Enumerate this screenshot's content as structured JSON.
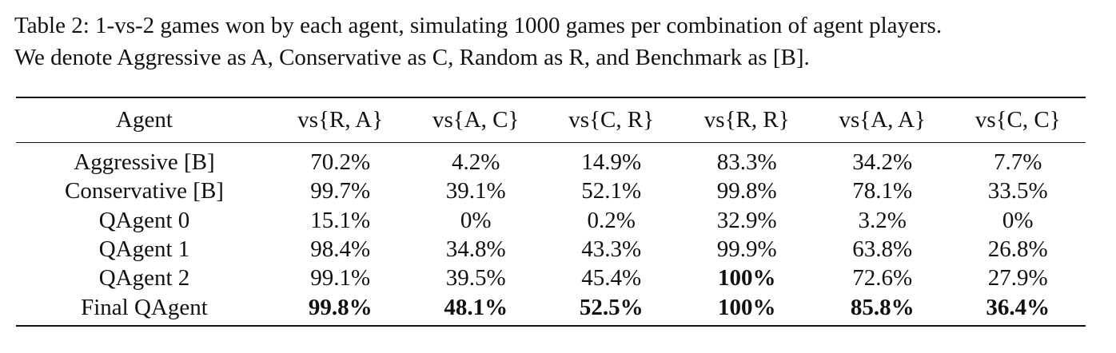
{
  "caption": {
    "line1": "Table 2: 1-vs-2 games won by each agent, simulating 1000 games per combination of agent players.",
    "line2": "We denote Aggressive as A, Conservative as C, Random as R, and Benchmark as [B]."
  },
  "table": {
    "headers": [
      "Agent",
      "vs{R, A}",
      "vs{A, C}",
      "vs{C, R}",
      "vs{R, R}",
      "vs{A, A}",
      "vs{C, C}"
    ],
    "rows": [
      {
        "agent": "Aggressive [B]",
        "cells": [
          "70.2%",
          "4.2%",
          "14.9%",
          "83.3%",
          "34.2%",
          "7.7%"
        ],
        "bold": [
          false,
          false,
          false,
          false,
          false,
          false
        ]
      },
      {
        "agent": "Conservative [B]",
        "cells": [
          "99.7%",
          "39.1%",
          "52.1%",
          "99.8%",
          "78.1%",
          "33.5%"
        ],
        "bold": [
          false,
          false,
          false,
          false,
          false,
          false
        ]
      },
      {
        "agent": "QAgent 0",
        "cells": [
          "15.1%",
          "0%",
          "0.2%",
          "32.9%",
          "3.2%",
          "0%"
        ],
        "bold": [
          false,
          false,
          false,
          false,
          false,
          false
        ]
      },
      {
        "agent": "QAgent 1",
        "cells": [
          "98.4%",
          "34.8%",
          "43.3%",
          "99.9%",
          "63.8%",
          "26.8%"
        ],
        "bold": [
          false,
          false,
          false,
          false,
          false,
          false
        ]
      },
      {
        "agent": "QAgent 2",
        "cells": [
          "99.1%",
          "39.5%",
          "45.4%",
          "100%",
          "72.6%",
          "27.9%"
        ],
        "bold": [
          false,
          false,
          false,
          true,
          false,
          false
        ]
      },
      {
        "agent": "Final QAgent",
        "cells": [
          "99.8%",
          "48.1%",
          "52.5%",
          "100%",
          "85.8%",
          "36.4%"
        ],
        "bold": [
          true,
          true,
          true,
          true,
          true,
          true
        ]
      }
    ]
  }
}
